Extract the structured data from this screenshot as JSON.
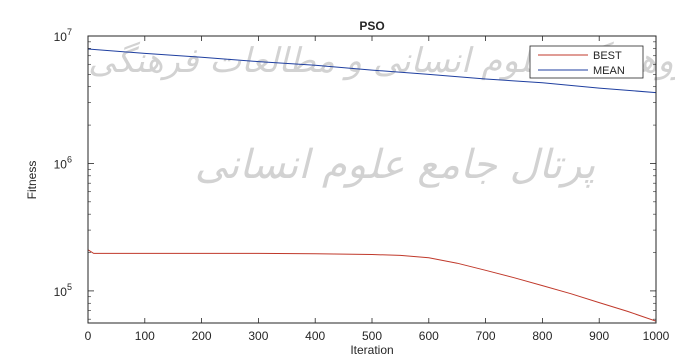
{
  "chart_data": {
    "type": "line",
    "title": "PSO",
    "xlabel": "Iteration",
    "ylabel": "Fitness",
    "xlim": [
      0,
      1000
    ],
    "ylim": [
      56000,
      10000000
    ],
    "yscale": "log",
    "grid": false,
    "legend_position": "top-right",
    "x_ticks": [
      0,
      100,
      200,
      300,
      400,
      500,
      600,
      700,
      800,
      900,
      1000
    ],
    "y_ticks": [
      {
        "value": 100000,
        "base": "10",
        "exp": "5"
      },
      {
        "value": 1000000,
        "base": "10",
        "exp": "6"
      },
      {
        "value": 10000000,
        "base": "10",
        "exp": "7"
      }
    ],
    "series": [
      {
        "name": "BEST",
        "color": "#c0392b",
        "x": [
          0,
          10,
          50,
          100,
          200,
          300,
          400,
          500,
          550,
          600,
          650,
          700,
          750,
          800,
          850,
          900,
          950,
          1000
        ],
        "y": [
          210000,
          197000,
          197000,
          197000,
          197000,
          197000,
          196000,
          193000,
          190000,
          182000,
          165000,
          145000,
          127000,
          110000,
          95000,
          81000,
          69000,
          58000
        ]
      },
      {
        "name": "MEAN",
        "color": "#1f3fa0",
        "x": [
          0,
          100,
          200,
          300,
          400,
          500,
          600,
          700,
          800,
          900,
          1000
        ],
        "y": [
          7900000,
          7300000,
          6800000,
          6300000,
          5900000,
          5400000,
          5000000,
          4600000,
          4300000,
          3900000,
          3600000
        ]
      }
    ]
  },
  "watermark": {
    "line1": "پژوهشگاه علوم انسانی و مطالعات فرهنگی",
    "line2": "پرتال جامع علوم انسانی"
  }
}
